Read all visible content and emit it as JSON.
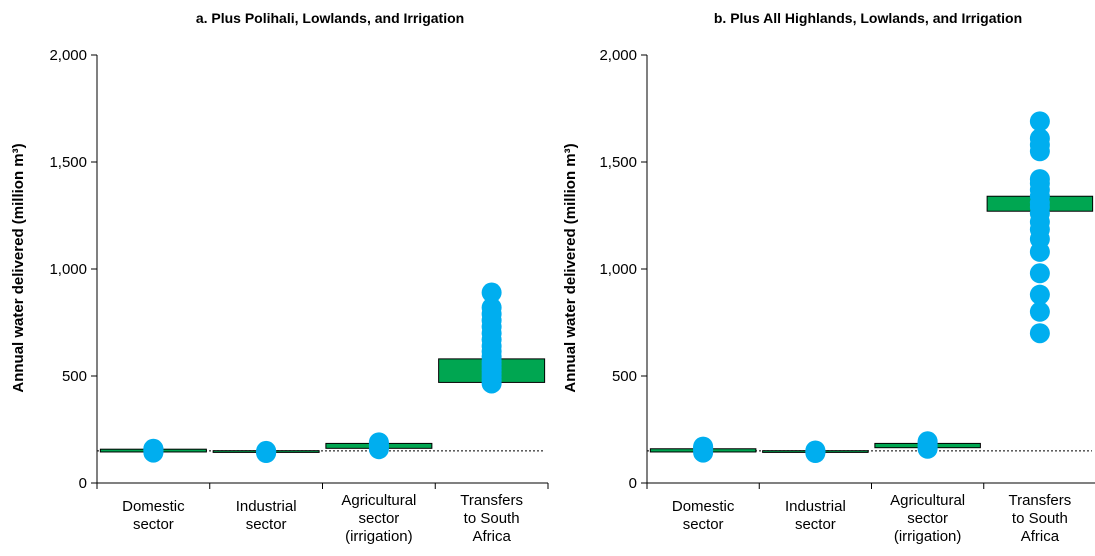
{
  "colors": {
    "box": "#00a651",
    "point": "#00aeef",
    "axis": "#000000"
  },
  "chart_data": [
    {
      "type": "scatter",
      "title": "a. Plus Polihali, Lowlands, and Irrigation",
      "ylabel": "Annual water delivered (million m³)",
      "ylim": [
        0,
        2000
      ],
      "yticks": [
        "0",
        "500",
        "1,000",
        "1,500",
        "2,000"
      ],
      "baseline": 150,
      "categories": [
        [
          "Domestic",
          "sector"
        ],
        [
          "Industrial",
          "sector"
        ],
        [
          "Agricultural",
          "sector",
          "(irrigation)"
        ],
        [
          "Transfers",
          "to South",
          "Africa"
        ]
      ],
      "boxes": [
        {
          "low": 145,
          "high": 158
        },
        {
          "low": 143,
          "high": 151
        },
        {
          "low": 162,
          "high": 185
        },
        {
          "low": 470,
          "high": 580
        }
      ],
      "points": [
        [
          142,
          148,
          152,
          158,
          160
        ],
        [
          140,
          143,
          146,
          150
        ],
        [
          158,
          168,
          175,
          182,
          190
        ],
        [
          465,
          480,
          495,
          510,
          525,
          540,
          555,
          570,
          590,
          615,
          640,
          670,
          700,
          730,
          760,
          790,
          820,
          890
        ]
      ]
    },
    {
      "type": "scatter",
      "title": "b. Plus All Highlands, Lowlands, and Irrigation",
      "ylabel": "Annual water delivered (million m³)",
      "ylim": [
        0,
        2000
      ],
      "yticks": [
        "0",
        "500",
        "1,000",
        "1,500",
        "2,000"
      ],
      "baseline": 150,
      "categories": [
        [
          "Domestic",
          "sector"
        ],
        [
          "Industrial",
          "sector"
        ],
        [
          "Agricultural",
          "sector",
          "(irrigation)"
        ],
        [
          "Transfers",
          "to South",
          "Africa"
        ]
      ],
      "boxes": [
        {
          "low": 145,
          "high": 160
        },
        {
          "low": 143,
          "high": 151
        },
        {
          "low": 165,
          "high": 185
        },
        {
          "low": 1270,
          "high": 1340
        }
      ],
      "points": [
        [
          142,
          150,
          158,
          165,
          170
        ],
        [
          140,
          144,
          148,
          152
        ],
        [
          160,
          168,
          178,
          188,
          195
        ],
        [
          700,
          800,
          880,
          980,
          1080,
          1140,
          1185,
          1220,
          1260,
          1290,
          1310,
          1340,
          1370,
          1400,
          1420,
          1550,
          1580,
          1610,
          1690
        ]
      ]
    }
  ]
}
